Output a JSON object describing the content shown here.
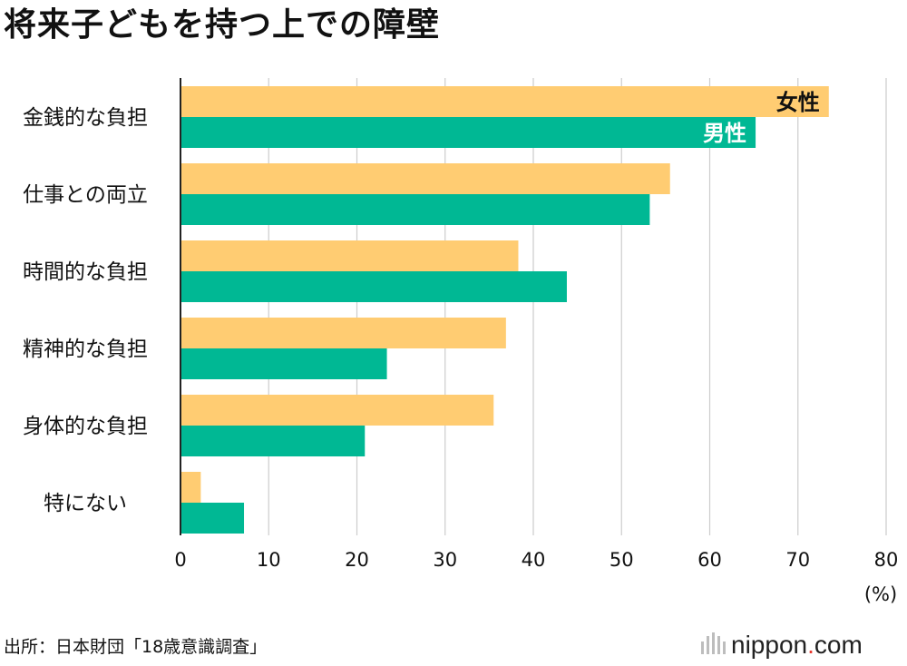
{
  "title": "将来子どもを持つ上での障壁",
  "source": "出所：日本財団「18歳意識調査」",
  "brand": {
    "name": "nippon",
    "dot": ".",
    "tld": "com"
  },
  "colors": {
    "female": "#FFCC72",
    "male": "#00B894",
    "grid": "#CCCCCC",
    "axis": "#222222"
  },
  "chart_data": {
    "type": "bar",
    "orientation": "horizontal",
    "title": "将来子どもを持つ上での障壁",
    "categories": [
      "金銭的な負担",
      "仕事との両立",
      "時間的な負担",
      "精神的な負担",
      "身体的な負担",
      "特にない"
    ],
    "series": [
      {
        "name": "女性",
        "values": [
          73.5,
          55.5,
          38.3,
          36.9,
          35.5,
          2.3
        ]
      },
      {
        "name": "男性",
        "values": [
          65.2,
          53.2,
          43.8,
          23.4,
          20.9,
          7.2
        ]
      }
    ],
    "xlim": [
      0,
      80
    ],
    "xticks": [
      "0",
      "10",
      "20",
      "30",
      "40",
      "50",
      "60",
      "70",
      "80"
    ],
    "xunit": "(%)",
    "grid": true,
    "legend": "inline-on-first-bars"
  }
}
